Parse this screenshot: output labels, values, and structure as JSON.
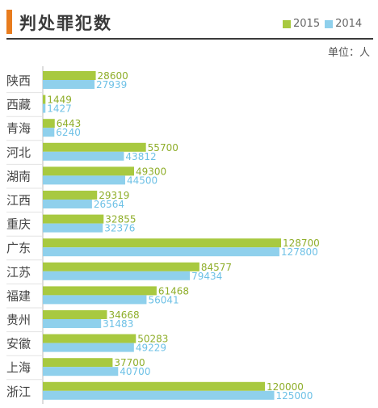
{
  "chart_data": {
    "type": "bar",
    "orientation": "horizontal",
    "title": "判处罪犯数",
    "unit": "单位：人",
    "legend_position": "top-right",
    "grid": false,
    "xlim": [
      0,
      130000
    ],
    "categories": [
      "陕西",
      "西藏",
      "青海",
      "河北",
      "湖南",
      "江西",
      "重庆",
      "广东",
      "江苏",
      "福建",
      "贵州",
      "安徽",
      "上海",
      "浙江"
    ],
    "series": [
      {
        "name": "2015",
        "color": "#a8c940",
        "values": [
          28600,
          1449,
          6443,
          55700,
          49300,
          29319,
          32855,
          128700,
          84577,
          61468,
          34668,
          50283,
          37700,
          120000
        ]
      },
      {
        "name": "2014",
        "color": "#8fd0ec",
        "values": [
          27939,
          1427,
          6240,
          43812,
          44500,
          26564,
          32376,
          127800,
          79434,
          56041,
          31483,
          49229,
          40700,
          125000
        ]
      }
    ]
  }
}
